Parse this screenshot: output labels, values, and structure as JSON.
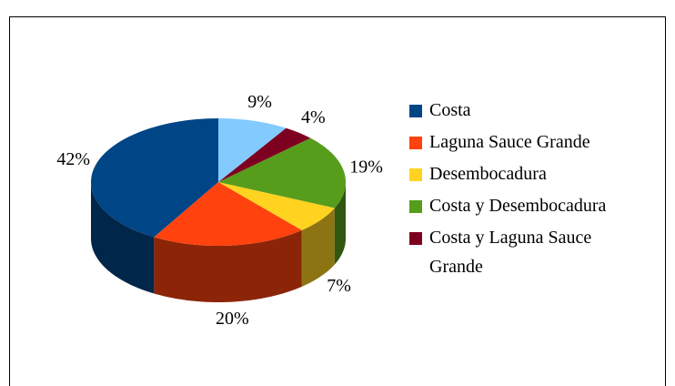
{
  "chart_data": {
    "type": "pie3d",
    "categories": [
      "Costa",
      "Laguna Sauce Grande",
      "Desembocadura",
      "Costa y Desembocadura",
      "Costa y Laguna Sauce Grande",
      null
    ],
    "values": [
      42,
      20,
      7,
      19,
      4,
      9
    ],
    "value_labels": [
      "42%",
      "20%",
      "7%",
      "19%",
      "4%",
      "9%"
    ],
    "colors": [
      "#004586",
      "#ff420e",
      "#ffd320",
      "#579d1c",
      "#7e0021",
      "#83caff"
    ],
    "legend": "right"
  }
}
